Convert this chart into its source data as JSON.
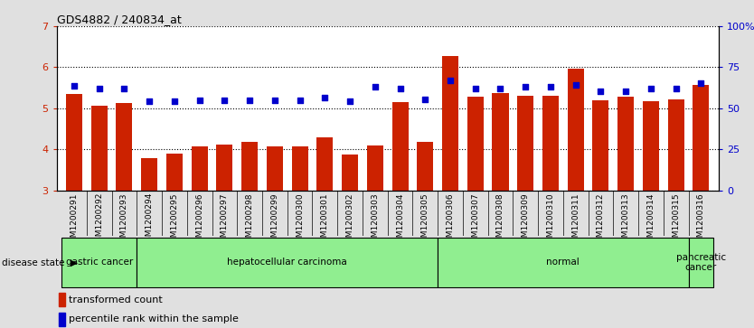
{
  "title": "GDS4882 / 240834_at",
  "samples": [
    "GSM1200291",
    "GSM1200292",
    "GSM1200293",
    "GSM1200294",
    "GSM1200295",
    "GSM1200296",
    "GSM1200297",
    "GSM1200298",
    "GSM1200299",
    "GSM1200300",
    "GSM1200301",
    "GSM1200302",
    "GSM1200303",
    "GSM1200304",
    "GSM1200305",
    "GSM1200306",
    "GSM1200307",
    "GSM1200308",
    "GSM1200309",
    "GSM1200310",
    "GSM1200311",
    "GSM1200312",
    "GSM1200313",
    "GSM1200314",
    "GSM1200315",
    "GSM1200316"
  ],
  "bar_values": [
    5.35,
    5.07,
    5.12,
    3.78,
    3.9,
    4.07,
    4.12,
    4.18,
    4.07,
    4.07,
    4.3,
    3.88,
    4.1,
    5.15,
    4.18,
    6.28,
    5.28,
    5.38,
    5.3,
    5.3,
    5.97,
    5.2,
    5.28,
    5.18,
    5.22,
    5.57
  ],
  "dot_values": [
    5.55,
    5.47,
    5.47,
    5.17,
    5.18,
    5.2,
    5.2,
    5.2,
    5.2,
    5.2,
    5.25,
    5.17,
    5.52,
    5.47,
    5.22,
    5.68,
    5.47,
    5.48,
    5.52,
    5.52,
    5.57,
    5.42,
    5.42,
    5.47,
    5.47,
    5.62
  ],
  "groups": [
    {
      "label": "gastric cancer",
      "start": 0,
      "end": 2
    },
    {
      "label": "hepatocellular carcinoma",
      "start": 3,
      "end": 14
    },
    {
      "label": "normal",
      "start": 15,
      "end": 24
    },
    {
      "label": "pancreatic\ncancer",
      "start": 25,
      "end": 25
    }
  ],
  "bar_color": "#cc2200",
  "dot_color": "#0000cc",
  "ylim_left": [
    3,
    7
  ],
  "ylim_right": [
    0,
    100
  ],
  "yticks_left": [
    3,
    4,
    5,
    6,
    7
  ],
  "yticks_right": [
    0,
    25,
    50,
    75,
    100
  ],
  "ytick_labels_right": [
    "0",
    "25",
    "50",
    "75",
    "100%"
  ],
  "bg_color": "#e0e0e0",
  "plot_bg": "#ffffff",
  "group_bg": "#90ee90",
  "group_text_color": "#000000",
  "xlabel_bg": "#d0d0d0"
}
